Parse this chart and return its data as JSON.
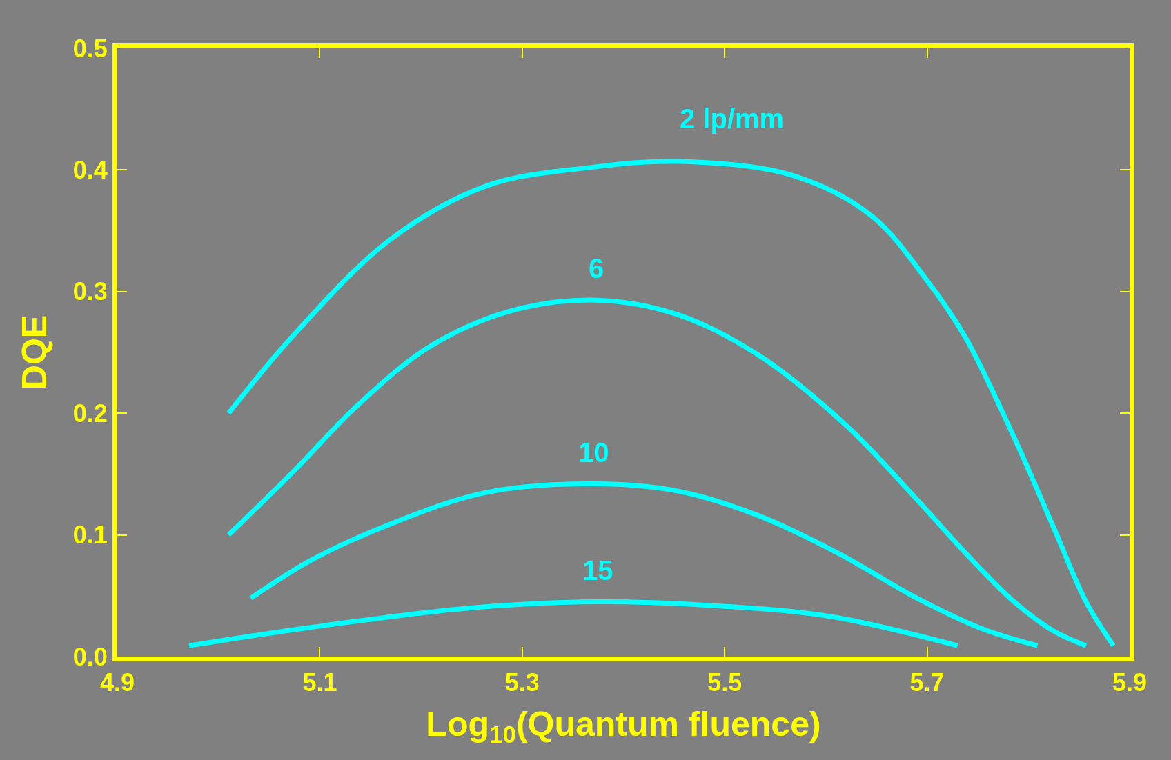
{
  "chart_data": {
    "type": "line",
    "xlabel": "Log$_{10}$(Quantum fluence)",
    "ylabel": "DQE",
    "xlim": [
      4.9,
      5.9
    ],
    "xticks": [
      4.9,
      5.1,
      5.3,
      5.5,
      5.7,
      5.9
    ],
    "ylim": [
      0,
      0.5
    ],
    "yticks": [
      {
        "value": 0,
        "label": "0.0"
      },
      0.1,
      0.2,
      0.3,
      0.4,
      0.5
    ],
    "legend": false,
    "marker": "none",
    "line_style": "solid",
    "series": [
      {
        "name": "2 lp/mm",
        "color": "#00ffff",
        "x": [
          5.01,
          5.075,
          5.17,
          5.265,
          5.367,
          5.454,
          5.565,
          5.644,
          5.7,
          5.738,
          5.786,
          5.825,
          5.857,
          5.884
        ],
        "values": [
          0.2,
          0.265,
          0.343,
          0.387,
          0.402,
          0.407,
          0.396,
          0.363,
          0.309,
          0.262,
          0.18,
          0.106,
          0.045,
          0.009
        ]
      },
      {
        "name": "6",
        "color": "#00ffff",
        "x": [
          5.01,
          5.075,
          5.138,
          5.209,
          5.288,
          5.373,
          5.454,
          5.533,
          5.62,
          5.69,
          5.738,
          5.786,
          5.825,
          5.857
        ],
        "values": [
          0.1,
          0.153,
          0.207,
          0.255,
          0.284,
          0.293,
          0.281,
          0.248,
          0.19,
          0.129,
          0.085,
          0.045,
          0.021,
          0.009
        ]
      },
      {
        "name": "10",
        "color": "#00ffff",
        "x": [
          5.032,
          5.091,
          5.17,
          5.265,
          5.371,
          5.454,
          5.533,
          5.612,
          5.69,
          5.754,
          5.809
        ],
        "values": [
          0.048,
          0.079,
          0.109,
          0.135,
          0.142,
          0.136,
          0.116,
          0.085,
          0.048,
          0.023,
          0.009
        ]
      },
      {
        "name": "15",
        "color": "#00ffff",
        "x": [
          4.971,
          5.091,
          5.249,
          5.375,
          5.486,
          5.604,
          5.73
        ],
        "values": [
          0.009,
          0.024,
          0.04,
          0.045,
          0.042,
          0.033,
          0.009
        ]
      }
    ]
  }
}
